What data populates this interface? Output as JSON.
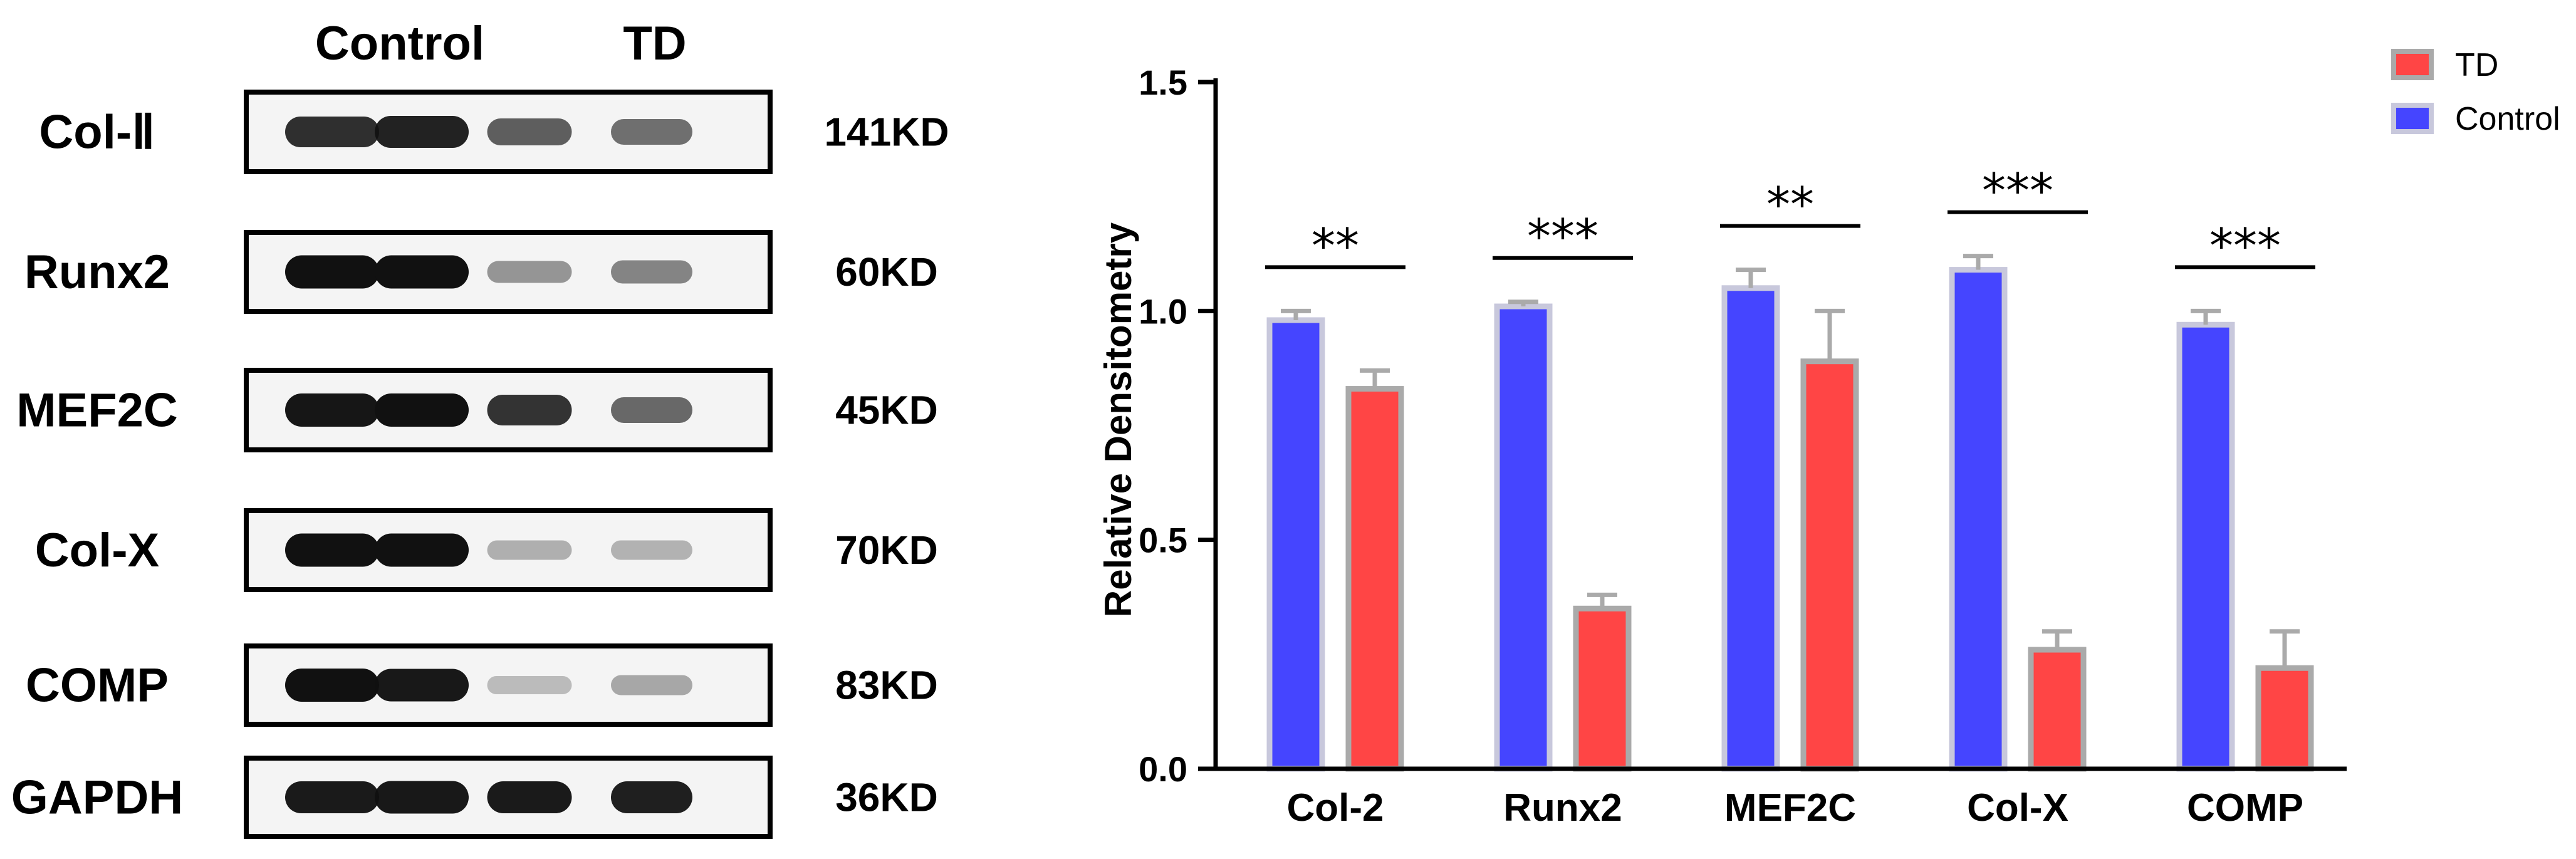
{
  "blot": {
    "col_headers": [
      "Control",
      "TD"
    ],
    "rows": [
      {
        "name": "Col-Ⅱ",
        "size": "141KD",
        "bands": [
          0.85,
          0.92,
          0.6,
          0.52
        ]
      },
      {
        "name": "Runx2",
        "size": "60KD",
        "bands": [
          1.0,
          1.0,
          0.32,
          0.4
        ]
      },
      {
        "name": "MEF2C",
        "size": "45KD",
        "bands": [
          0.98,
          1.0,
          0.82,
          0.55
        ]
      },
      {
        "name": "Col-X",
        "size": "70KD",
        "bands": [
          1.0,
          1.0,
          0.18,
          0.16
        ]
      },
      {
        "name": "COMP",
        "size": "83KD",
        "bands": [
          1.0,
          0.97,
          0.12,
          0.22
        ]
      },
      {
        "name": "GAPDH",
        "size": "36KD",
        "bands": [
          0.95,
          0.97,
          0.95,
          0.93
        ]
      }
    ]
  },
  "chart_data": {
    "type": "bar",
    "ylabel": "Relative Densitometry",
    "xlabel": "",
    "ylim": [
      0,
      1.5
    ],
    "yticks": [
      "0.0",
      "0.5",
      "1.0",
      "1.5"
    ],
    "categories": [
      "Col-2",
      "Runx2",
      "MEF2C",
      "Col-X",
      "COMP"
    ],
    "series": [
      {
        "name": "Control",
        "values": [
          0.98,
          1.01,
          1.05,
          1.09,
          0.97
        ],
        "errors": [
          0.02,
          0.01,
          0.04,
          0.03,
          0.03
        ],
        "color": "#4545ff"
      },
      {
        "name": "TD",
        "values": [
          0.83,
          0.35,
          0.89,
          0.26,
          0.22
        ],
        "errors": [
          0.04,
          0.03,
          0.11,
          0.04,
          0.08
        ],
        "color": "#ff4545"
      }
    ],
    "significance": [
      "**",
      "***",
      "**",
      "***",
      "***"
    ],
    "legend": [
      {
        "name": "TD",
        "color": "#ff4545"
      },
      {
        "name": "Control",
        "color": "#4545ff"
      }
    ],
    "legend_position": "top-right",
    "grid": false
  }
}
